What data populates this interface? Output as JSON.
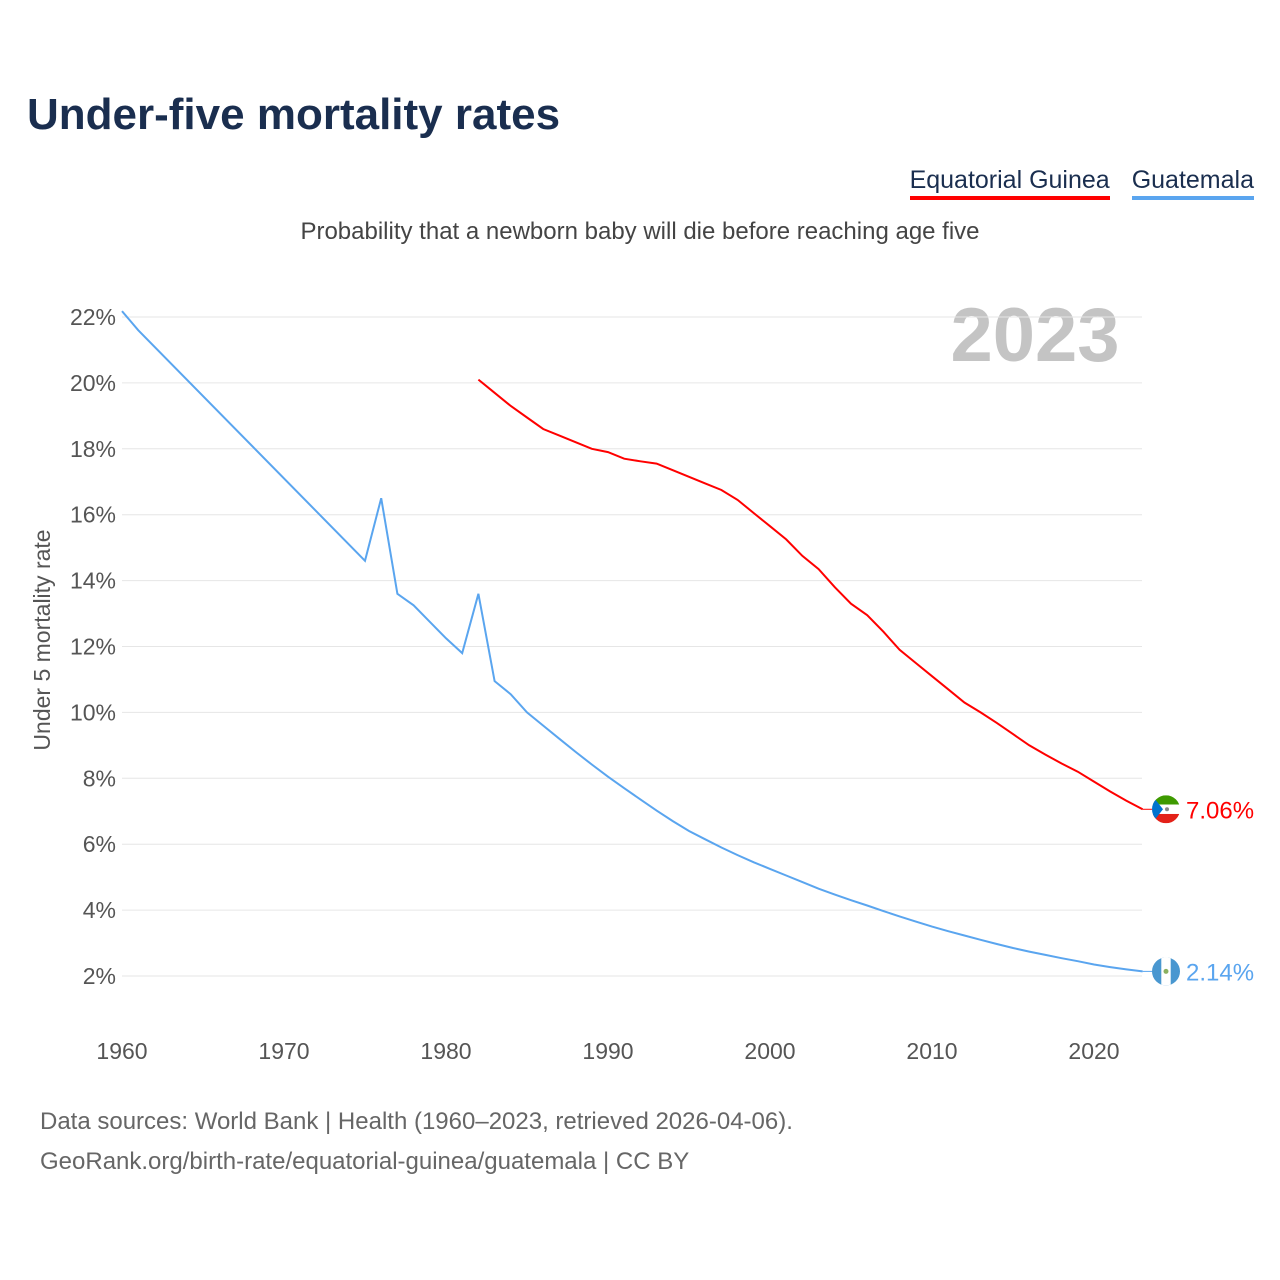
{
  "title": "Under-five mortality rates",
  "subtitle": "Probability that a newborn baby will die before reaching age five",
  "year_watermark": "2023",
  "sources": {
    "line1": "Data sources: World Bank | Health (1960–2023, retrieved 2026-04-06).",
    "line2": "GeoRank.org/birth-rate/equatorial-guinea/guatemala | CC BY"
  },
  "chart_data": {
    "type": "line",
    "title": "Under-five mortality rates",
    "ylabel": "Under 5 mortality rate",
    "xlabel": "",
    "xlim": [
      1960,
      2023
    ],
    "ylim": [
      1,
      22.5
    ],
    "x_ticks": [
      "1960",
      "1970",
      "1980",
      "1990",
      "2000",
      "2010",
      "2020"
    ],
    "y_ticks": [
      "2%",
      "4%",
      "6%",
      "8%",
      "10%",
      "12%",
      "14%",
      "16%",
      "18%",
      "20%",
      "22%"
    ],
    "grid": true,
    "legend": "top-right",
    "series": [
      {
        "name": "Equatorial Guinea",
        "color": "#ff0000",
        "end_label": "7.06%",
        "points": [
          [
            1982,
            20.1
          ],
          [
            1983,
            19.7
          ],
          [
            1984,
            19.3
          ],
          [
            1985,
            18.95
          ],
          [
            1986,
            18.6
          ],
          [
            1987,
            18.4
          ],
          [
            1988,
            18.2
          ],
          [
            1989,
            18.0
          ],
          [
            1990,
            17.9
          ],
          [
            1991,
            17.7
          ],
          [
            1992,
            17.62
          ],
          [
            1993,
            17.55
          ],
          [
            1994,
            17.35
          ],
          [
            1995,
            17.15
          ],
          [
            1996,
            16.95
          ],
          [
            1997,
            16.75
          ],
          [
            1998,
            16.45
          ],
          [
            1999,
            16.05
          ],
          [
            2000,
            15.65
          ],
          [
            2001,
            15.25
          ],
          [
            2002,
            14.75
          ],
          [
            2003,
            14.35
          ],
          [
            2004,
            13.8
          ],
          [
            2005,
            13.3
          ],
          [
            2006,
            12.95
          ],
          [
            2007,
            12.45
          ],
          [
            2008,
            11.9
          ],
          [
            2009,
            11.5
          ],
          [
            2010,
            11.1
          ],
          [
            2011,
            10.7
          ],
          [
            2012,
            10.3
          ],
          [
            2013,
            10.0
          ],
          [
            2014,
            9.68
          ],
          [
            2015,
            9.34
          ],
          [
            2016,
            9.0
          ],
          [
            2017,
            8.72
          ],
          [
            2018,
            8.45
          ],
          [
            2019,
            8.2
          ],
          [
            2020,
            7.9
          ],
          [
            2021,
            7.6
          ],
          [
            2022,
            7.32
          ],
          [
            2023,
            7.06
          ]
        ]
      },
      {
        "name": "Guatemala",
        "color": "#5aa5ef",
        "end_label": "2.14%",
        "points": [
          [
            1960,
            22.18
          ],
          [
            1961,
            21.6
          ],
          [
            1975,
            14.6
          ],
          [
            1976,
            16.5
          ],
          [
            1977,
            13.6
          ],
          [
            1978,
            13.25
          ],
          [
            1979,
            12.75
          ],
          [
            1980,
            12.25
          ],
          [
            1981,
            11.8
          ],
          [
            1982,
            13.6
          ],
          [
            1983,
            10.95
          ],
          [
            1984,
            10.55
          ],
          [
            1985,
            10.0
          ],
          [
            1986,
            9.6
          ],
          [
            1987,
            9.2
          ],
          [
            1988,
            8.8
          ],
          [
            1989,
            8.42
          ],
          [
            1990,
            8.05
          ],
          [
            1991,
            7.7
          ],
          [
            1992,
            7.36
          ],
          [
            1993,
            7.02
          ],
          [
            1994,
            6.7
          ],
          [
            1995,
            6.4
          ],
          [
            1996,
            6.15
          ],
          [
            1997,
            5.9
          ],
          [
            1998,
            5.67
          ],
          [
            1999,
            5.45
          ],
          [
            2000,
            5.25
          ],
          [
            2001,
            5.05
          ],
          [
            2002,
            4.85
          ],
          [
            2003,
            4.65
          ],
          [
            2004,
            4.47
          ],
          [
            2005,
            4.3
          ],
          [
            2006,
            4.14
          ],
          [
            2007,
            3.97
          ],
          [
            2008,
            3.81
          ],
          [
            2009,
            3.65
          ],
          [
            2010,
            3.5
          ],
          [
            2011,
            3.36
          ],
          [
            2012,
            3.23
          ],
          [
            2013,
            3.1
          ],
          [
            2014,
            2.97
          ],
          [
            2015,
            2.85
          ],
          [
            2016,
            2.74
          ],
          [
            2017,
            2.64
          ],
          [
            2018,
            2.54
          ],
          [
            2019,
            2.45
          ],
          [
            2020,
            2.35
          ],
          [
            2021,
            2.27
          ],
          [
            2022,
            2.2
          ],
          [
            2023,
            2.14
          ]
        ]
      }
    ]
  }
}
